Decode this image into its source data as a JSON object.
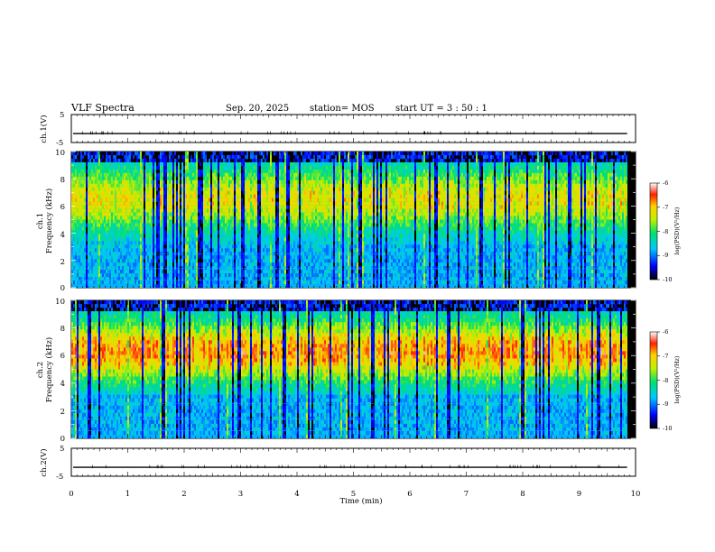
{
  "header": {
    "title": "VLF Spectra",
    "date": "Sep. 20, 2025",
    "station": "station= MOS",
    "start_ut": "start  UT =   3  : 50 : 1"
  },
  "chart_data": {
    "type": "heatmap",
    "x_axis": {
      "label": "Time  (min)",
      "range": [
        0,
        10
      ],
      "ticks": [
        "0",
        "1",
        "2",
        "3",
        "4",
        "5",
        "6",
        "7",
        "8",
        "9",
        "10"
      ],
      "data_end": 9.85
    },
    "ch1_waveform": {
      "ylabel": "ch.1(V)",
      "ylim": [
        -5,
        5
      ],
      "ticks": [
        "5",
        "-5"
      ],
      "level": -1.8
    },
    "ch1_spectrogram": {
      "ylabel_1": "ch.1",
      "ylabel_2": "Frequency (kHz)",
      "ylim": [
        0,
        10
      ],
      "ticks": [
        "0",
        "2",
        "4",
        "6",
        "8",
        "10"
      ],
      "band_center_khz": 6.5
    },
    "ch2_spectrogram": {
      "ylabel_1": "ch.2",
      "ylabel_2": "Frequency (kHz)",
      "ylim": [
        0,
        10
      ],
      "ticks": [
        "0",
        "2",
        "4",
        "6",
        "8",
        "10"
      ],
      "band_center_khz": 6.3
    },
    "ch2_waveform": {
      "ylabel": "ch.2(V)",
      "ylim": [
        -5,
        5
      ],
      "ticks": [
        "5",
        "-5"
      ],
      "level": -1.8
    },
    "colorbar": {
      "label": "log(PSD)(V²/Hz)",
      "range": [
        -10,
        -6
      ],
      "ticks": [
        "-6",
        "-7",
        "-8",
        "-9",
        "-10"
      ]
    }
  }
}
